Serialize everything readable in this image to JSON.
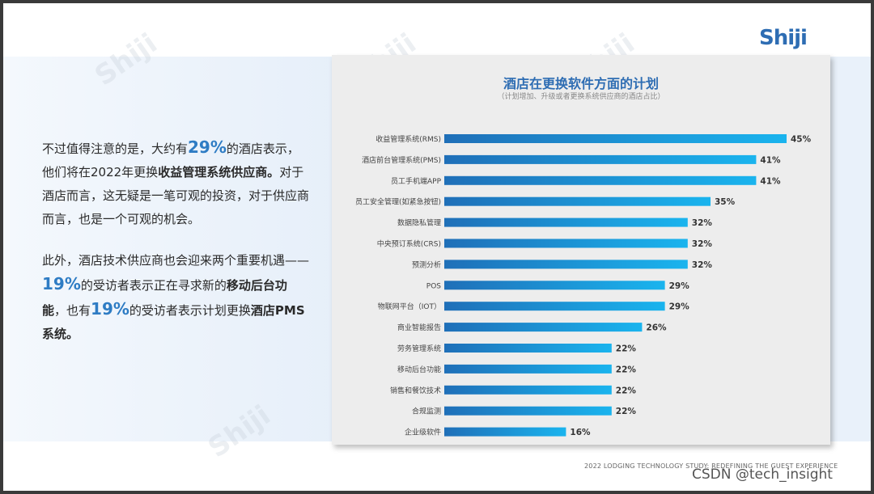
{
  "brand": {
    "logo_text": "Shiji",
    "watermark": "Shiji"
  },
  "left": {
    "p1_a": "不过值得注意的是，大约有",
    "p1_pct": "29%",
    "p1_b": "的酒店表示，他们将在2022年更换",
    "p1_bold": "收益管理系统供应商。",
    "p1_c": "对于酒店而言，这无疑是一笔可观的投资，对于供应商而言，也是一个可观的机会。",
    "p2_a": "此外，酒店技术供应商也会迎来两个重要机遇——",
    "p2_pct1": "19%",
    "p2_b": "的受访者表示正在寻求新的",
    "p2_bold1": "移动后台功能",
    "p2_c": "，也有",
    "p2_pct2": "19%",
    "p2_d": "的受访者表示计划更换",
    "p2_bold2": "酒店PMS系统。"
  },
  "chart_data": {
    "type": "bar",
    "orientation": "horizontal",
    "title": "酒店在更换软件方面的计划",
    "subtitle": "（计划增加、升级或者更换系统供应商的酒店占比）",
    "categories": [
      "收益管理系统(RMS)",
      "酒店前台管理系统(PMS)",
      "员工手机端APP",
      "员工安全管理(如紧急按钮)",
      "数据隐私管理",
      "中央预订系统(CRS)",
      "预测分析",
      "POS",
      "物联网平台（IOT）",
      "商业智能报告",
      "劳务管理系统",
      "移动后台功能",
      "销售和餐饮技术",
      "合规监测",
      "企业级软件"
    ],
    "values": [
      45,
      41,
      41,
      35,
      32,
      32,
      32,
      29,
      29,
      26,
      22,
      22,
      22,
      22,
      16
    ],
    "labels": [
      "45%",
      "41%",
      "41%",
      "35%",
      "32%",
      "32%",
      "32%",
      "29%",
      "29%",
      "26%",
      "22%",
      "22%",
      "22%",
      "22%",
      "16%"
    ],
    "xlim": [
      0,
      45
    ],
    "grid": false,
    "bar_color_start": "#1f6fb8",
    "bar_color_end": "#1ab4ee"
  },
  "footer": "2022 LODGING TECHNOLOGY STUDY:  REDEFINING THE GUEST EXPERIENCE",
  "overlay": "CSDN @tech_insight"
}
